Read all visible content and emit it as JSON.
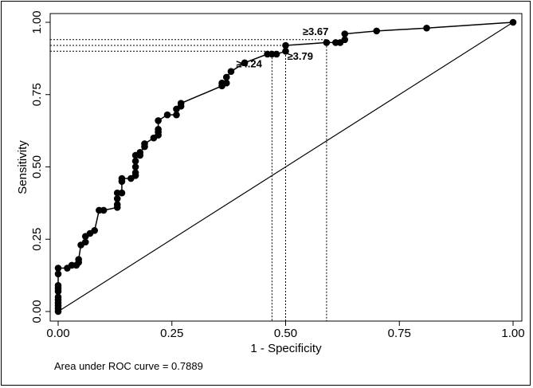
{
  "chart_data": {
    "type": "line",
    "xlabel": "1 - Specificity",
    "ylabel": "Sensitivity",
    "xlim": [
      0,
      1
    ],
    "ylim": [
      0,
      1
    ],
    "xticks": [
      "0.00",
      "0.25",
      "0.50",
      "0.75",
      "1.00"
    ],
    "yticks": [
      "0.00",
      "0.25",
      "0.50",
      "0.75",
      "1.00"
    ],
    "grid": false,
    "legend": "none",
    "roc_points": [
      [
        0.0,
        0.0
      ],
      [
        0.0,
        0.01
      ],
      [
        0.0,
        0.02
      ],
      [
        0.0,
        0.03
      ],
      [
        0.0,
        0.04
      ],
      [
        0.0,
        0.05
      ],
      [
        0.0,
        0.07
      ],
      [
        0.0,
        0.08
      ],
      [
        0.0,
        0.09
      ],
      [
        0.0,
        0.13
      ],
      [
        0.0,
        0.15
      ],
      [
        0.02,
        0.15
      ],
      [
        0.03,
        0.16
      ],
      [
        0.04,
        0.16
      ],
      [
        0.045,
        0.17
      ],
      [
        0.045,
        0.18
      ],
      [
        0.05,
        0.23
      ],
      [
        0.06,
        0.24
      ],
      [
        0.06,
        0.26
      ],
      [
        0.07,
        0.27
      ],
      [
        0.08,
        0.28
      ],
      [
        0.09,
        0.35
      ],
      [
        0.1,
        0.35
      ],
      [
        0.13,
        0.36
      ],
      [
        0.13,
        0.37
      ],
      [
        0.13,
        0.39
      ],
      [
        0.13,
        0.41
      ],
      [
        0.14,
        0.41
      ],
      [
        0.14,
        0.45
      ],
      [
        0.14,
        0.46
      ],
      [
        0.16,
        0.46
      ],
      [
        0.17,
        0.47
      ],
      [
        0.17,
        0.48
      ],
      [
        0.17,
        0.5
      ],
      [
        0.17,
        0.52
      ],
      [
        0.17,
        0.54
      ],
      [
        0.18,
        0.54
      ],
      [
        0.18,
        0.55
      ],
      [
        0.19,
        0.57
      ],
      [
        0.19,
        0.58
      ],
      [
        0.21,
        0.6
      ],
      [
        0.22,
        0.61
      ],
      [
        0.22,
        0.62
      ],
      [
        0.22,
        0.63
      ],
      [
        0.22,
        0.66
      ],
      [
        0.24,
        0.68
      ],
      [
        0.26,
        0.68
      ],
      [
        0.26,
        0.7
      ],
      [
        0.27,
        0.71
      ],
      [
        0.27,
        0.72
      ],
      [
        0.36,
        0.78
      ],
      [
        0.36,
        0.79
      ],
      [
        0.37,
        0.79
      ],
      [
        0.37,
        0.81
      ],
      [
        0.38,
        0.83
      ],
      [
        0.41,
        0.86
      ],
      [
        0.46,
        0.89
      ],
      [
        0.47,
        0.89
      ],
      [
        0.48,
        0.89
      ],
      [
        0.5,
        0.9
      ],
      [
        0.5,
        0.92
      ],
      [
        0.59,
        0.93
      ],
      [
        0.61,
        0.93
      ],
      [
        0.62,
        0.93
      ],
      [
        0.63,
        0.94
      ],
      [
        0.63,
        0.96
      ],
      [
        0.7,
        0.97
      ],
      [
        0.81,
        0.98
      ],
      [
        1.0,
        1.0
      ]
    ],
    "reference_line": [
      [
        0,
        0
      ],
      [
        1,
        1
      ]
    ],
    "cutoffs": [
      {
        "label": "≥3.67",
        "x": 0.59,
        "y": 0.94
      },
      {
        "label": "≥3.79",
        "x": 0.5,
        "y": 0.92
      },
      {
        "label": "≥4.24",
        "x": 0.47,
        "y": 0.9
      }
    ],
    "annotation": "Area under ROC curve = 0.7889"
  }
}
